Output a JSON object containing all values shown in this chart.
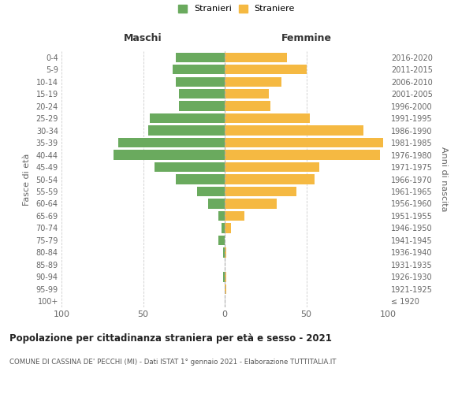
{
  "age_groups": [
    "100+",
    "95-99",
    "90-94",
    "85-89",
    "80-84",
    "75-79",
    "70-74",
    "65-69",
    "60-64",
    "55-59",
    "50-54",
    "45-49",
    "40-44",
    "35-39",
    "30-34",
    "25-29",
    "20-24",
    "15-19",
    "10-14",
    "5-9",
    "0-4"
  ],
  "birth_years": [
    "≤ 1920",
    "1921-1925",
    "1926-1930",
    "1931-1935",
    "1936-1940",
    "1941-1945",
    "1946-1950",
    "1951-1955",
    "1956-1960",
    "1961-1965",
    "1966-1970",
    "1971-1975",
    "1976-1980",
    "1981-1985",
    "1986-1990",
    "1991-1995",
    "1996-2000",
    "2001-2005",
    "2006-2010",
    "2011-2015",
    "2016-2020"
  ],
  "males": [
    0,
    0,
    1,
    0,
    1,
    4,
    2,
    4,
    10,
    17,
    30,
    43,
    68,
    65,
    47,
    46,
    28,
    28,
    30,
    32,
    30
  ],
  "females": [
    0,
    1,
    1,
    0,
    1,
    0,
    4,
    12,
    32,
    44,
    55,
    58,
    95,
    97,
    85,
    52,
    28,
    27,
    35,
    50,
    38
  ],
  "male_color": "#6aaa5e",
  "female_color": "#f5b942",
  "background_color": "#ffffff",
  "grid_color": "#cccccc",
  "xlim": 100,
  "title": "Popolazione per cittadinanza straniera per età e sesso - 2021",
  "subtitle": "COMUNE DI CASSINA DE' PECCHI (MI) - Dati ISTAT 1° gennaio 2021 - Elaborazione TUTTITALIA.IT",
  "ylabel_left": "Fasce di età",
  "ylabel_right": "Anni di nascita",
  "xlabel_left": "Maschi",
  "xlabel_right": "Femmine",
  "legend_males": "Stranieri",
  "legend_females": "Straniere"
}
